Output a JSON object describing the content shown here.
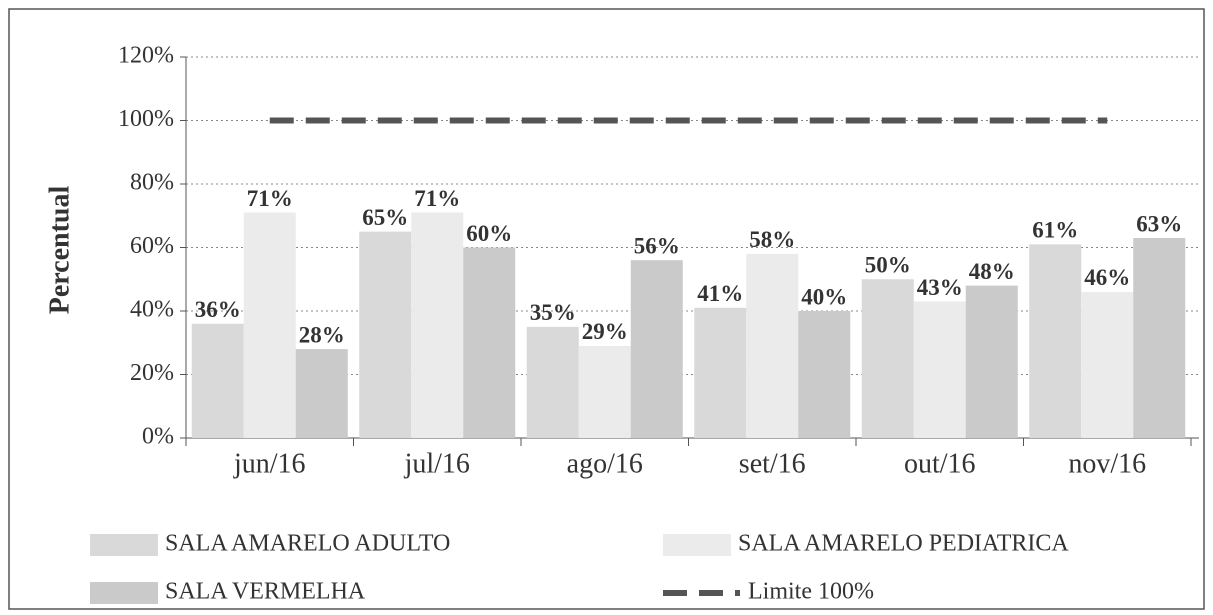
{
  "chart_data": {
    "type": "bar",
    "y_label": "Percentual",
    "categories": [
      "jun/16",
      "jul/16",
      "ago/16",
      "set/16",
      "out/16",
      "nov/16"
    ],
    "series": [
      {
        "name": "SALA AMARELO ADULTO",
        "color": "#d9d9d9",
        "values": [
          36,
          65,
          35,
          41,
          50,
          61
        ],
        "value_labels": [
          "36%",
          "65%",
          "35%",
          "41%",
          "50%",
          "61%"
        ]
      },
      {
        "name": "SALA AMARELO PEDIATRICA",
        "color": "#ebebeb",
        "values": [
          71,
          71,
          29,
          58,
          43,
          46
        ],
        "value_labels": [
          "71%",
          "71%",
          "29%",
          "58%",
          "43%",
          "46%"
        ]
      },
      {
        "name": "SALA VERMELHA",
        "color": "#cacaca",
        "values": [
          28,
          60,
          56,
          40,
          48,
          63
        ],
        "value_labels": [
          "28%",
          "60%",
          "56%",
          "40%",
          "48%",
          "63%"
        ]
      },
      {
        "name": "Limite 100%",
        "color": "#555555",
        "type": "line",
        "dashed": true,
        "values": [
          100,
          100,
          100,
          100,
          100,
          100
        ]
      }
    ],
    "ylim": [
      0,
      120
    ],
    "yticks": [
      {
        "value": 0,
        "label": "0%"
      },
      {
        "value": 20,
        "label": "20%"
      },
      {
        "value": 40,
        "label": "40%"
      },
      {
        "value": 60,
        "label": "60%"
      },
      {
        "value": 80,
        "label": "80%"
      },
      {
        "value": 100,
        "label": "100%"
      },
      {
        "value": 120,
        "label": "120%"
      }
    ],
    "grid": true,
    "legend": "bottom"
  }
}
